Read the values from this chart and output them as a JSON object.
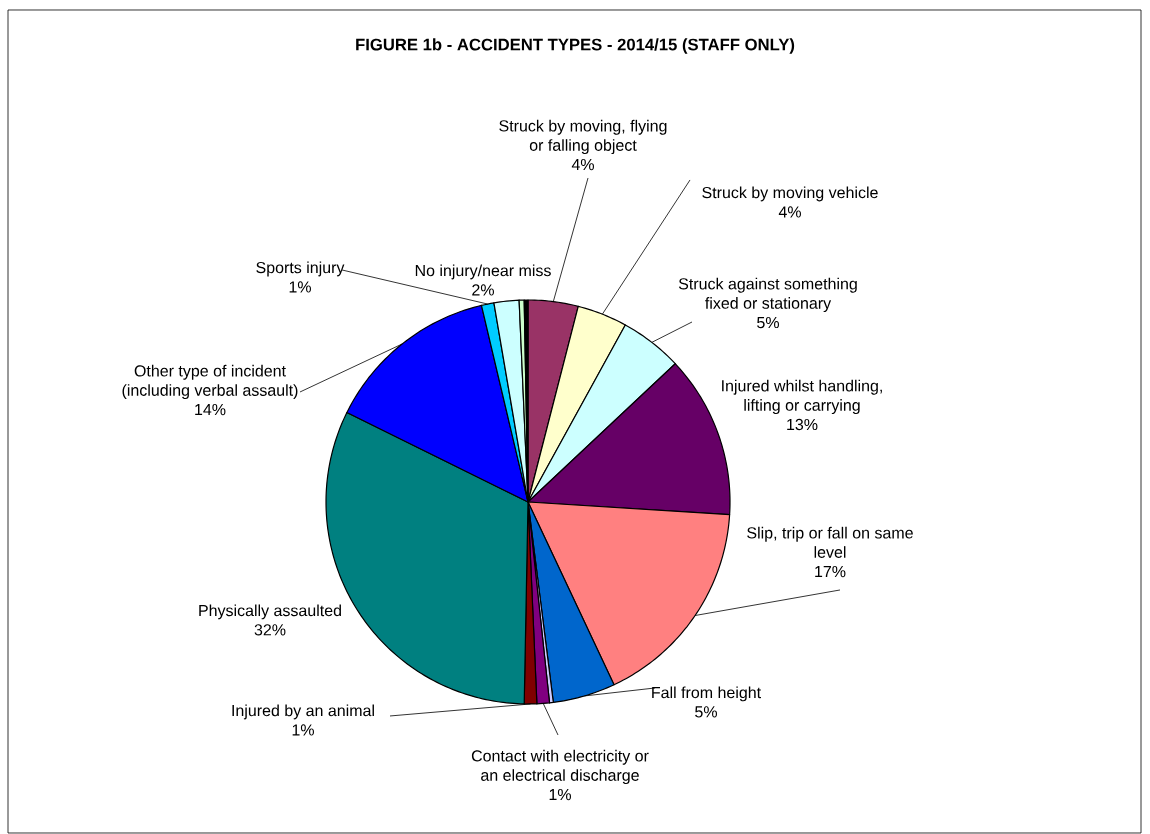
{
  "chart_data": {
    "type": "pie",
    "title": "FIGURE 1b - ACCIDENT TYPES - 2014/15 (STAFF ONLY)",
    "categories": [
      "Struck by moving, flying or falling object",
      "Struck by moving vehicle",
      "Struck against something fixed or stationary",
      "Injured whilst handling, lifting or carrying",
      "Slip, trip or fall on same level",
      "Fall from height",
      null,
      "Contact with electricity or an electrical discharge",
      "Injured by an animal",
      "Physically assaulted",
      "Other type of incident (including verbal assault)",
      "Sports injury",
      "No injury/near miss",
      null,
      null
    ],
    "values": [
      4,
      4,
      5,
      13,
      17,
      5,
      0.3,
      1,
      1,
      32,
      14,
      1,
      2,
      0.4,
      0.3
    ],
    "value_labels": [
      "4%",
      "4%",
      "5%",
      "13%",
      "17%",
      "5%",
      null,
      "1%",
      "1%",
      "32%",
      "14%",
      "1%",
      "2%",
      null,
      null
    ],
    "colors": [
      "#993366",
      "#ffffcc",
      "#ccffff",
      "#660066",
      "#ff8080",
      "#0066cc",
      "#ccccff",
      "#800080",
      "#800000",
      "#008080",
      "#0000ff",
      "#00ccff",
      "#ccffff",
      "#ccffcc",
      "#000000"
    ]
  }
}
